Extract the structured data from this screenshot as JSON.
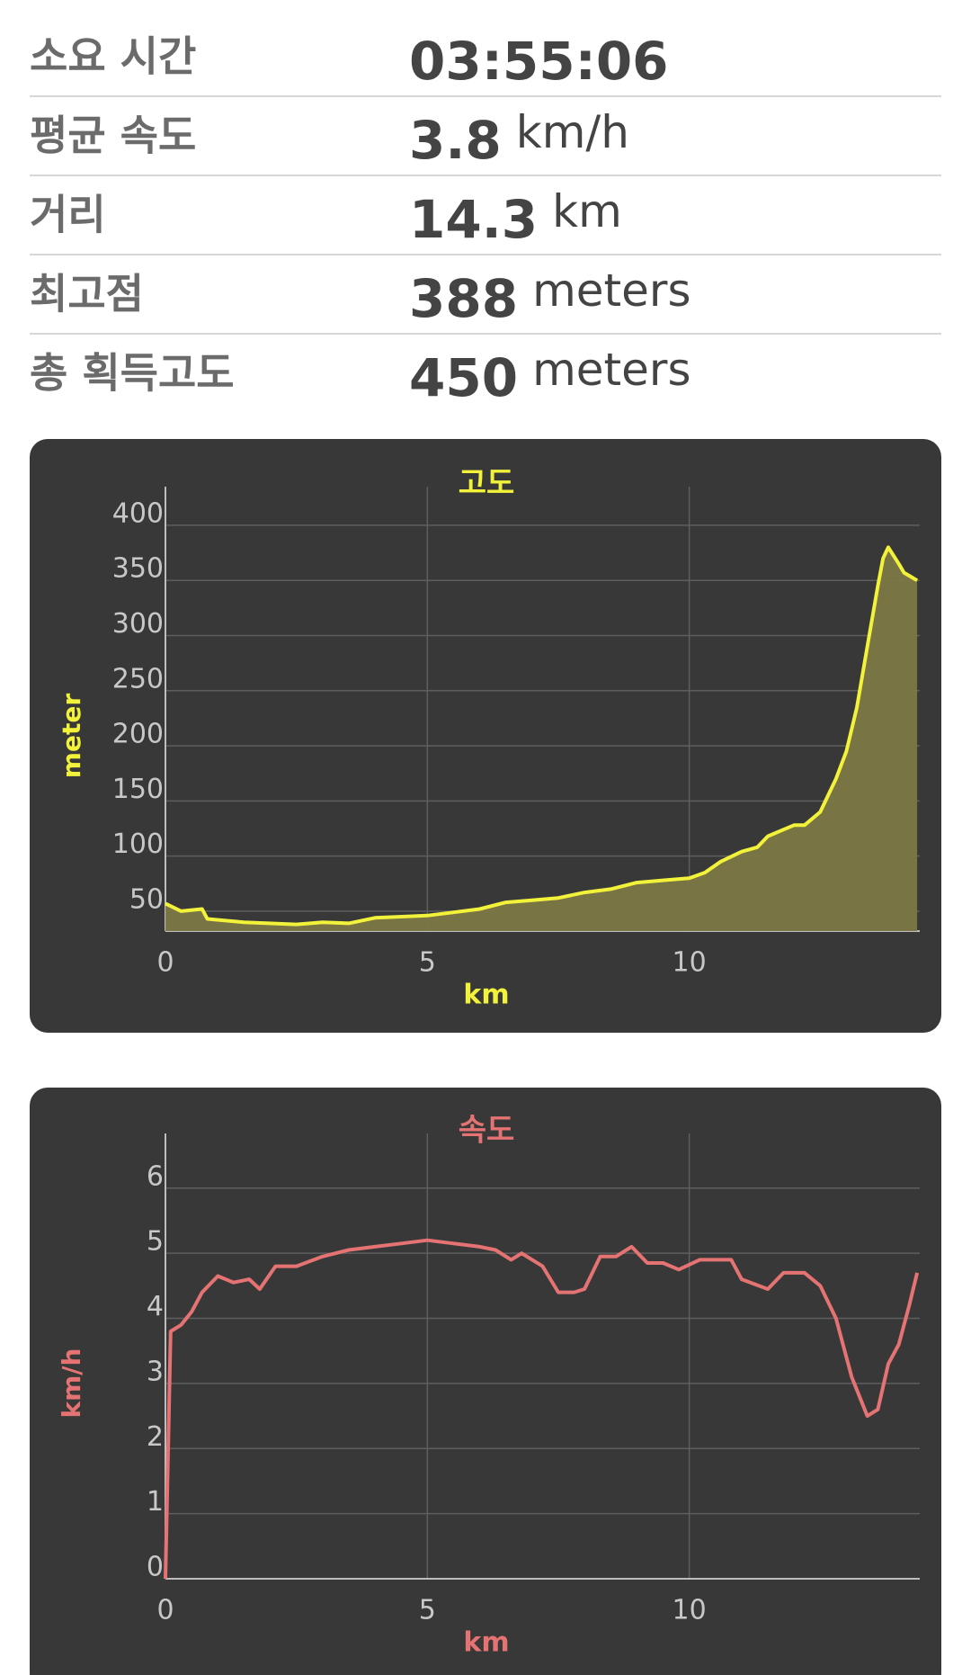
{
  "stats": [
    {
      "label": "소요 시간",
      "value": "03:55:06"
    },
    {
      "label": "평균 속도",
      "value": "3.8",
      "unit": "km/h"
    },
    {
      "label": "거리",
      "value": "14.3",
      "unit": "km"
    },
    {
      "label": "최고점",
      "value": "388",
      "unit": "meters"
    },
    {
      "label": "총 획득고도",
      "value": "450",
      "unit": "meters"
    }
  ],
  "chart_data": [
    {
      "type": "area",
      "title": "고도",
      "x_label": "km",
      "y_label": "meter",
      "color": "#f2f23a",
      "fill": "#7b7743",
      "x": [
        0,
        0.3,
        0.7,
        0.8,
        1.5,
        2.5,
        3,
        3.5,
        4,
        5,
        5.5,
        6,
        6.5,
        7,
        7.5,
        8,
        8.5,
        9,
        9.5,
        10,
        10.3,
        10.6,
        11,
        11.3,
        11.5,
        11.8,
        12,
        12.2,
        12.5,
        12.8,
        13,
        13.2,
        13.4,
        13.6,
        13.7,
        13.8,
        14,
        14.1,
        14.35
      ],
      "values": [
        57,
        50,
        52,
        43,
        40,
        38,
        40,
        39,
        44,
        46,
        49,
        52,
        58,
        60,
        62,
        67,
        70,
        76,
        78,
        80,
        85,
        95,
        104,
        108,
        118,
        124,
        128,
        128,
        140,
        170,
        195,
        235,
        290,
        345,
        370,
        380,
        365,
        357,
        350
      ],
      "xlim": [
        0,
        14.4
      ],
      "xticks": [
        0,
        5,
        10
      ],
      "ylim": [
        32,
        435
      ],
      "yticks": [
        50,
        100,
        150,
        200,
        250,
        300,
        350,
        400
      ],
      "grid": true
    },
    {
      "type": "line",
      "title": "속도",
      "x_label": "km",
      "y_label": "km/h",
      "color": "#e57373",
      "x": [
        0,
        0.1,
        0.3,
        0.5,
        0.7,
        1,
        1.3,
        1.6,
        1.8,
        2.1,
        2.5,
        3,
        3.5,
        4,
        4.5,
        5,
        5.5,
        6,
        6.3,
        6.6,
        6.8,
        7.2,
        7.5,
        7.8,
        8,
        8.3,
        8.6,
        8.9,
        9.2,
        9.5,
        9.8,
        10.2,
        10.5,
        10.8,
        11,
        11.5,
        11.8,
        12.2,
        12.5,
        12.8,
        13.1,
        13.4,
        13.6,
        13.8,
        14,
        14.2,
        14.35
      ],
      "values": [
        0,
        3.8,
        3.9,
        4.1,
        4.4,
        4.65,
        4.55,
        4.6,
        4.45,
        4.8,
        4.8,
        4.95,
        5.05,
        5.1,
        5.15,
        5.2,
        5.15,
        5.1,
        5.05,
        4.9,
        5.0,
        4.8,
        4.4,
        4.4,
        4.45,
        4.95,
        4.95,
        5.1,
        4.85,
        4.85,
        4.75,
        4.9,
        4.9,
        4.9,
        4.6,
        4.45,
        4.7,
        4.7,
        4.5,
        4.0,
        3.1,
        2.5,
        2.6,
        3.3,
        3.6,
        4.2,
        4.7
      ],
      "xlim": [
        0,
        14.4
      ],
      "xticks": [
        0,
        5,
        10
      ],
      "ylim": [
        0,
        6.84
      ],
      "yticks": [
        0,
        1,
        2,
        3,
        4,
        5,
        6
      ],
      "grid": true
    }
  ]
}
